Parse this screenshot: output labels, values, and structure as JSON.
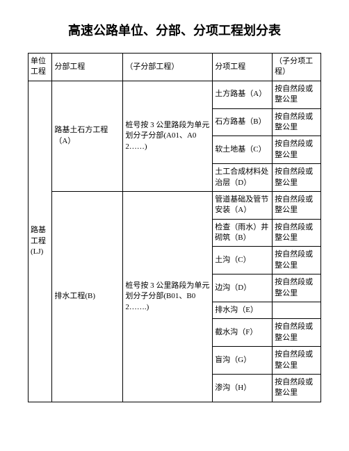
{
  "title": "高速公路单位、分部、分项工程划分表",
  "header": {
    "c1": "单位工程",
    "c2": "分部工程",
    "c3": "（子分部工程）",
    "c4": "分项工程",
    "c5": "（子分项工程）"
  },
  "unit": "路基工程(LJ)",
  "group1": {
    "name": "路基土石方工程（A）",
    "sub": "桩号按 3 公里路段为单元划分子分部(A01、A02……)",
    "rows": [
      {
        "item": "土方路基（A）",
        "sub": "按自然段或整公里"
      },
      {
        "item": "石方路基（B）",
        "sub": "按自然段或整公里"
      },
      {
        "item": "软土地基（C）",
        "sub": "按自然段或整公里"
      },
      {
        "item": "土工合成材料处治层（D）",
        "sub": "按自然段或整公里"
      }
    ]
  },
  "group2": {
    "name": "排水工程(B)",
    "sub": "桩号按 3 公里路段为单元划分子分部(B01、B02…….)",
    "rows": [
      {
        "item": "管道基础及管节安装（A）",
        "sub": "按自然段或整公里"
      },
      {
        "item": "检查（雨水）井砌筑（B）",
        "sub": "按自然段或整公里"
      },
      {
        "item": "土沟（C）",
        "sub": "按自然段或整公里"
      },
      {
        "item": "边沟（D）",
        "sub": "按自然段或整公里"
      },
      {
        "item": "排水沟（E）",
        "sub": ""
      },
      {
        "item": "截水沟（F）",
        "sub": "按自然段或整公里"
      },
      {
        "item": "盲沟（G）",
        "sub": "按自然段或整公里"
      },
      {
        "item": "渗沟（H）",
        "sub": "按自然段或整公里"
      }
    ]
  }
}
